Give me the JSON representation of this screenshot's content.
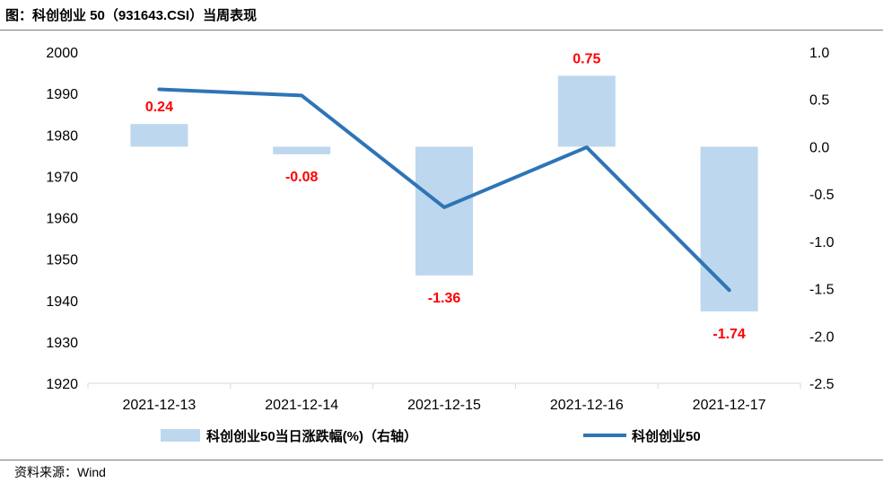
{
  "title": "图：科创创业 50（931643.CSI）当周表现",
  "source": "资料来源：Wind",
  "colors": {
    "bar": "#bdd7ee",
    "line": "#2e75b6",
    "data_label": "#ff0000",
    "axis": "#d9d9d9"
  },
  "chart_data": {
    "type": "bar+line",
    "categories": [
      "2021-12-13",
      "2021-12-14",
      "2021-12-15",
      "2021-12-16",
      "2021-12-17"
    ],
    "series": [
      {
        "name": "科创创业50当日涨跌幅(%)（右轴）",
        "type": "bar",
        "axis": "right",
        "values": [
          0.24,
          -0.08,
          -1.36,
          0.75,
          -1.74
        ]
      },
      {
        "name": "科创创业50",
        "type": "line",
        "axis": "left",
        "values": [
          1991,
          1989.5,
          1962.5,
          1977,
          1942.5
        ]
      }
    ],
    "data_labels": [
      "0.24",
      "-0.08",
      "-1.36",
      "0.75",
      "-1.74"
    ],
    "y_left": {
      "range": [
        1920,
        2000
      ],
      "ticks": [
        "1920",
        "1930",
        "1940",
        "1950",
        "1960",
        "1970",
        "1980",
        "1990",
        "2000"
      ]
    },
    "y_right": {
      "range": [
        -2.5,
        1.0
      ],
      "ticks": [
        "-2.5",
        "-2.0",
        "-1.5",
        "-1.0",
        "-0.5",
        "0.0",
        "0.5",
        "1.0"
      ]
    },
    "grid": false,
    "legend_position": "bottom"
  }
}
